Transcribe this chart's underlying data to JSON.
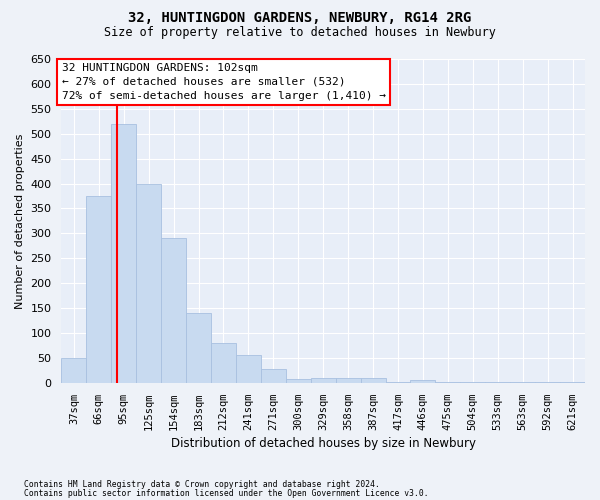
{
  "title": "32, HUNTINGDON GARDENS, NEWBURY, RG14 2RG",
  "subtitle": "Size of property relative to detached houses in Newbury",
  "xlabel": "Distribution of detached houses by size in Newbury",
  "ylabel": "Number of detached properties",
  "categories": [
    "37sqm",
    "66sqm",
    "95sqm",
    "125sqm",
    "154sqm",
    "183sqm",
    "212sqm",
    "241sqm",
    "271sqm",
    "300sqm",
    "329sqm",
    "358sqm",
    "387sqm",
    "417sqm",
    "446sqm",
    "475sqm",
    "504sqm",
    "533sqm",
    "563sqm",
    "592sqm",
    "621sqm"
  ],
  "values": [
    50,
    375,
    520,
    400,
    290,
    140,
    80,
    55,
    28,
    8,
    10,
    10,
    10,
    2,
    5,
    2,
    1,
    1,
    1,
    1,
    1
  ],
  "bar_color": "#c8daf0",
  "bar_edgecolor": "#a8c0e0",
  "redline_x": 1.72,
  "annotation_title": "32 HUNTINGDON GARDENS: 102sqm",
  "annotation_line1": "← 27% of detached houses are smaller (532)",
  "annotation_line2": "72% of semi-detached houses are larger (1,410) →",
  "ylim": [
    0,
    650
  ],
  "yticks": [
    0,
    50,
    100,
    150,
    200,
    250,
    300,
    350,
    400,
    450,
    500,
    550,
    600,
    650
  ],
  "fig_bg": "#eef2f8",
  "plot_bg": "#e8eef8",
  "grid_color": "#ffffff",
  "footer_line1": "Contains HM Land Registry data © Crown copyright and database right 2024.",
  "footer_line2": "Contains public sector information licensed under the Open Government Licence v3.0."
}
